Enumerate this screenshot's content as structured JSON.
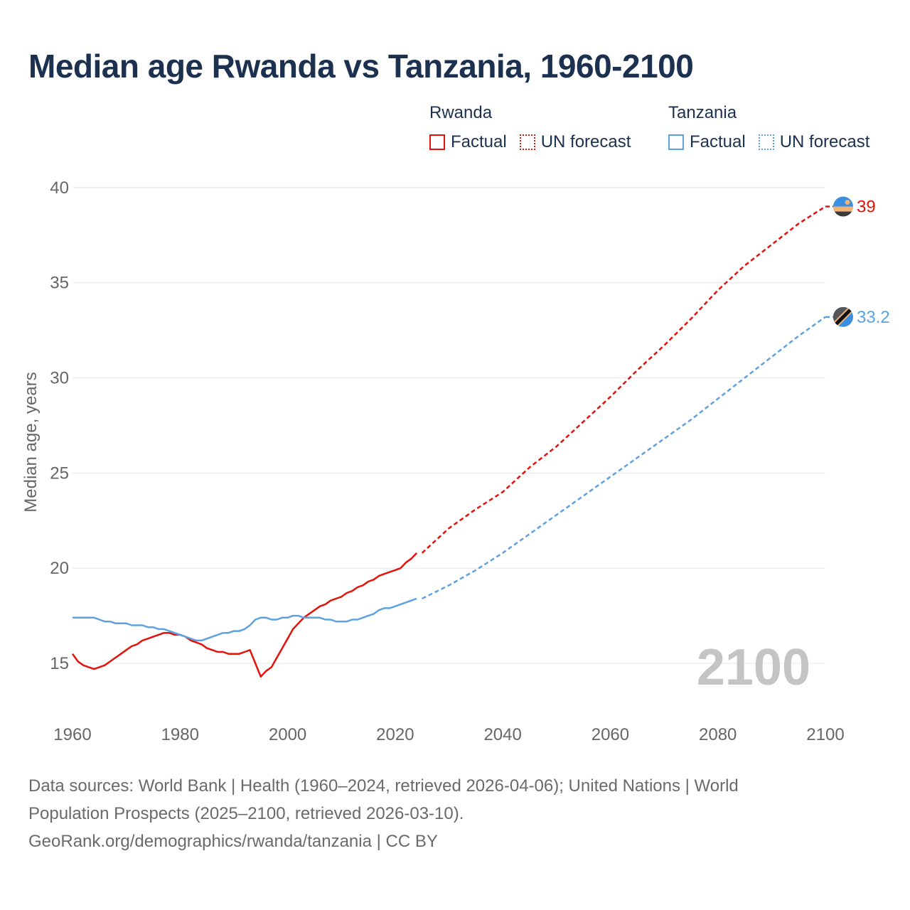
{
  "title": "Median age Rwanda vs Tanzania, 1960-2100",
  "legend": {
    "groups": [
      {
        "name": "Rwanda",
        "factual": "Factual",
        "forecast": "UN forecast",
        "color": "#e3120b"
      },
      {
        "name": "Tanzania",
        "factual": "Factual",
        "forecast": "UN forecast",
        "color": "#5da2e0"
      }
    ]
  },
  "footer": {
    "line1": "Data sources: World Bank | Health (1960–2024, retrieved 2026-04-06); United Nations | World",
    "line2": "Population Prospects (2025–2100, retrieved 2026-03-10).",
    "line3": "GeoRank.org/demographics/rwanda/tanzania | CC BY"
  },
  "year_watermark": "2100",
  "chart_data": {
    "type": "line",
    "title": "Median age Rwanda vs Tanzania, 1960-2100",
    "xlabel": "",
    "ylabel": "Median age, years",
    "xlim": [
      1960,
      2100
    ],
    "ylim": [
      12.5,
      41
    ],
    "xticks": [
      1960,
      1980,
      2000,
      2020,
      2040,
      2060,
      2080,
      2100
    ],
    "yticks": [
      15,
      20,
      25,
      30,
      35,
      40
    ],
    "grid": true,
    "series": [
      {
        "name": "Rwanda",
        "color": "#e3120b",
        "end_label": "39",
        "factual": {
          "x": [
            1960,
            1961,
            1962,
            1963,
            1964,
            1965,
            1966,
            1967,
            1968,
            1969,
            1970,
            1971,
            1972,
            1973,
            1974,
            1975,
            1976,
            1977,
            1978,
            1979,
            1980,
            1981,
            1982,
            1983,
            1984,
            1985,
            1986,
            1987,
            1988,
            1989,
            1990,
            1991,
            1992,
            1993,
            1994,
            1995,
            1996,
            1997,
            1998,
            1999,
            2000,
            2001,
            2002,
            2003,
            2004,
            2005,
            2006,
            2007,
            2008,
            2009,
            2010,
            2011,
            2012,
            2013,
            2014,
            2015,
            2016,
            2017,
            2018,
            2019,
            2020,
            2021,
            2022,
            2023,
            2024
          ],
          "y": [
            15.5,
            15.1,
            14.9,
            14.8,
            14.7,
            14.8,
            14.9,
            15.1,
            15.3,
            15.5,
            15.7,
            15.9,
            16.0,
            16.2,
            16.3,
            16.4,
            16.5,
            16.6,
            16.6,
            16.5,
            16.5,
            16.4,
            16.2,
            16.1,
            16.0,
            15.8,
            15.7,
            15.6,
            15.6,
            15.5,
            15.5,
            15.5,
            15.6,
            15.7,
            15.0,
            14.3,
            14.6,
            14.8,
            15.3,
            15.8,
            16.3,
            16.8,
            17.1,
            17.4,
            17.6,
            17.8,
            18.0,
            18.1,
            18.3,
            18.4,
            18.5,
            18.7,
            18.8,
            19.0,
            19.1,
            19.3,
            19.4,
            19.6,
            19.7,
            19.8,
            19.9,
            20.0,
            20.3,
            20.5,
            20.8
          ]
        },
        "forecast": {
          "x": [
            2025,
            2030,
            2035,
            2040,
            2045,
            2050,
            2055,
            2060,
            2065,
            2070,
            2075,
            2080,
            2085,
            2090,
            2095,
            2100
          ],
          "y": [
            20.8,
            22.1,
            23.1,
            24.0,
            25.3,
            26.4,
            27.7,
            29.0,
            30.4,
            31.7,
            33.1,
            34.6,
            35.9,
            37.0,
            38.1,
            39.0
          ]
        }
      },
      {
        "name": "Tanzania",
        "color": "#5da2e0",
        "end_label": "33.2",
        "factual": {
          "x": [
            1960,
            1961,
            1962,
            1963,
            1964,
            1965,
            1966,
            1967,
            1968,
            1969,
            1970,
            1971,
            1972,
            1973,
            1974,
            1975,
            1976,
            1977,
            1978,
            1979,
            1980,
            1981,
            1982,
            1983,
            1984,
            1985,
            1986,
            1987,
            1988,
            1989,
            1990,
            1991,
            1992,
            1993,
            1994,
            1995,
            1996,
            1997,
            1998,
            1999,
            2000,
            2001,
            2002,
            2003,
            2004,
            2005,
            2006,
            2007,
            2008,
            2009,
            2010,
            2011,
            2012,
            2013,
            2014,
            2015,
            2016,
            2017,
            2018,
            2019,
            2020,
            2021,
            2022,
            2023,
            2024
          ],
          "y": [
            17.4,
            17.4,
            17.4,
            17.4,
            17.4,
            17.3,
            17.2,
            17.2,
            17.1,
            17.1,
            17.1,
            17.0,
            17.0,
            17.0,
            16.9,
            16.9,
            16.8,
            16.8,
            16.7,
            16.6,
            16.5,
            16.4,
            16.3,
            16.2,
            16.2,
            16.3,
            16.4,
            16.5,
            16.6,
            16.6,
            16.7,
            16.7,
            16.8,
            17.0,
            17.3,
            17.4,
            17.4,
            17.3,
            17.3,
            17.4,
            17.4,
            17.5,
            17.5,
            17.4,
            17.4,
            17.4,
            17.4,
            17.3,
            17.3,
            17.2,
            17.2,
            17.2,
            17.3,
            17.3,
            17.4,
            17.5,
            17.6,
            17.8,
            17.9,
            17.9,
            18.0,
            18.1,
            18.2,
            18.3,
            18.4
          ]
        },
        "forecast": {
          "x": [
            2025,
            2030,
            2035,
            2040,
            2045,
            2050,
            2055,
            2060,
            2065,
            2070,
            2075,
            2080,
            2085,
            2090,
            2095,
            2100
          ],
          "y": [
            18.4,
            19.1,
            19.9,
            20.8,
            21.8,
            22.8,
            23.8,
            24.8,
            25.8,
            26.8,
            27.8,
            28.9,
            30.0,
            31.1,
            32.2,
            33.2
          ]
        }
      }
    ]
  }
}
